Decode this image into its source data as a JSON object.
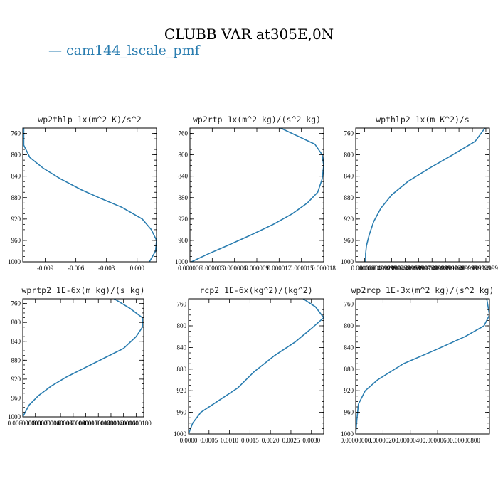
{
  "figure": {
    "title": "CLUBB VAR at305E,0N",
    "legend": "— cam144_lscale_pmf",
    "series_color": "#2a7db0"
  },
  "chart_data": [
    {
      "type": "line",
      "title": "wp2thlp  1x(m^2 K)/s^2",
      "ylim": [
        1000,
        750
      ],
      "xlim": [
        -0.0112,
        0.0019
      ],
      "yticks": [
        760,
        800,
        840,
        880,
        920,
        960,
        1000
      ],
      "xticks": [
        -0.009,
        -0.006,
        -0.003,
        0.0
      ],
      "xticklabels": [
        "-0.009",
        "-0.006",
        "-0.003",
        "0.000"
      ],
      "x": [
        -0.0111,
        -0.0111,
        -0.0105,
        -0.0092,
        -0.0075,
        -0.0055,
        -0.0035,
        -0.0015,
        0.0005,
        0.0014,
        0.0019,
        0.0018,
        0.0012
      ],
      "y": [
        750,
        782,
        805,
        825,
        845,
        865,
        882,
        898,
        920,
        940,
        960,
        980,
        1000
      ]
    },
    {
      "type": "line",
      "title": "wp2rtp  1x(m^2 kg)/(s^2 kg)",
      "ylim": [
        1000,
        750
      ],
      "xlim": [
        0.0,
        1.8e-05
      ],
      "yticks": [
        760,
        800,
        840,
        880,
        920,
        960,
        1000
      ],
      "xticks": [
        0.0,
        3e-06,
        6e-06,
        9e-06,
        1.2e-05,
        1.5e-05,
        1.8e-05
      ],
      "xticklabels": [
        "0.000000",
        "0.000003",
        "0.000006",
        "0.000009",
        "0.000012",
        "0.000015",
        "0.000018"
      ],
      "x": [
        1.22e-05,
        1.68e-05,
        1.78e-05,
        1.8e-05,
        1.78e-05,
        1.72e-05,
        1.58e-05,
        1.38e-05,
        1.12e-05,
        8.2e-06,
        5e-06,
        2.5e-06,
        2e-07
      ],
      "y": [
        750,
        780,
        800,
        820,
        845,
        870,
        890,
        910,
        930,
        950,
        970,
        985,
        1000
      ]
    },
    {
      "type": "line",
      "title": "wpthlp2  1x(m K^2)/s",
      "ylim": [
        1000,
        750
      ],
      "xlim": [
        -0.0001,
        0.00139
      ],
      "yticks": [
        760,
        800,
        840,
        880,
        920,
        960,
        1000
      ],
      "xticks": [
        0.0,
        0.00015,
        0.0003,
        0.00045,
        0.0006,
        0.00075,
        0.0009,
        0.00105,
        0.0012,
        0.00135
      ],
      "xticklabels": [
        "0.0000000",
        "0.0001499999",
        "0.0002999999",
        "0.0004499999",
        "0.0005999999",
        "0.0007499999",
        "0.0008999999",
        "0.0010499999",
        "0.0011999999",
        "0.0013499999"
      ],
      "x": [
        0.00134,
        0.00123,
        0.00098,
        0.00072,
        0.00048,
        0.0003,
        0.00018,
        0.0001,
        5e-05,
        2e-05,
        1e-05,
        1e-05
      ],
      "y": [
        750,
        775,
        800,
        825,
        850,
        875,
        900,
        925,
        950,
        970,
        985,
        1000
      ]
    },
    {
      "type": "line",
      "title": "wprtp2  1E-6x(m kg)/(s kg)",
      "ylim": [
        1000,
        750
      ],
      "xlim": [
        0.0,
        1.92e-06
      ],
      "yticks": [
        760,
        800,
        840,
        880,
        920,
        960,
        1000
      ],
      "xticks": [
        0.0,
        2e-07,
        4e-07,
        6e-07,
        8e-07,
        1e-06,
        1.2e-06,
        1.4e-06,
        1.6e-06,
        1.8e-06
      ],
      "xticklabels": [
        "0.00000000",
        "0.00000020",
        "0.00000040",
        "0.00000060",
        "0.00000080",
        "0.00000100",
        "0.00000120",
        "0.00000140",
        "0.00000160",
        "0.00000180"
      ],
      "x": [
        1.45e-06,
        1.7e-06,
        1.9e-06,
        1.9e-06,
        1.8e-06,
        1.6e-06,
        1.3e-06,
        1e-06,
        7e-07,
        4.5e-07,
        2.5e-07,
        1e-07,
        0.0
      ],
      "y": [
        750,
        770,
        790,
        810,
        830,
        855,
        875,
        895,
        915,
        935,
        955,
        975,
        1000
      ]
    },
    {
      "type": "line",
      "title": "rcp2  1E-6x(kg^2)/(kg^2)",
      "ylim": [
        1000,
        750
      ],
      "xlim": [
        0.0,
        0.0033
      ],
      "yticks": [
        760,
        800,
        840,
        880,
        920,
        960,
        1000
      ],
      "xticks": [
        0.0,
        0.0005,
        0.001,
        0.0015,
        0.002,
        0.0025,
        0.003
      ],
      "xticklabels": [
        "0.0000",
        "0.0005",
        "0.0010",
        "0.0015",
        "0.0020",
        "0.0025",
        "0.0030"
      ],
      "x": [
        0.0028,
        0.0031,
        0.0033,
        0.003,
        0.0026,
        0.0021,
        0.0016,
        0.0012,
        0.0007,
        0.0003,
        0.0001,
        0.0
      ],
      "y": [
        750,
        765,
        785,
        805,
        830,
        855,
        885,
        915,
        940,
        960,
        980,
        1000
      ]
    },
    {
      "type": "line",
      "title": "wp2rcp  1E-3x(m^2 kg)/(s^2 kg)",
      "ylim": [
        1000,
        750
      ],
      "xlim": [
        0.0,
        9.8e-06
      ],
      "yticks": [
        760,
        800,
        840,
        880,
        920,
        960,
        1000
      ],
      "xticks": [
        0.0,
        2e-06,
        4e-06,
        6e-06,
        8e-06
      ],
      "xticklabels": [
        "0.00000000",
        "0.00000200",
        "0.00000400",
        "0.00000600",
        "0.00000800"
      ],
      "x": [
        9.6e-06,
        9.8e-06,
        9.4e-06,
        8e-06,
        5.8e-06,
        3.5e-06,
        1.6e-06,
        7e-07,
        2e-07,
        1e-07,
        0.0
      ],
      "y": [
        750,
        780,
        800,
        820,
        845,
        870,
        900,
        920,
        945,
        970,
        1000
      ]
    }
  ]
}
